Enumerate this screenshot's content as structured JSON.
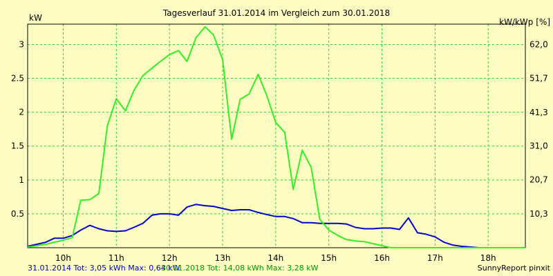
{
  "chart_data": {
    "type": "line",
    "title": "Tagesverlauf 31.01.2014 im Vergleich zum 30.01.2018",
    "ylabel_left": "kW",
    "ylabel_right": "kW/kWp [%]",
    "xlim": [
      9.33,
      18.7
    ],
    "ylim": [
      0,
      3.3
    ],
    "x_ticks": [
      10,
      11,
      12,
      13,
      14,
      15,
      16,
      17,
      18
    ],
    "x_tick_labels": [
      "10h",
      "11h",
      "12h",
      "13h",
      "14h",
      "15h",
      "16h",
      "17h",
      "18h"
    ],
    "y_ticks_left": [
      0.5,
      1,
      1.5,
      2,
      2.5,
      3
    ],
    "y_tick_labels_left": [
      "0.5",
      "1",
      "1.5",
      "2",
      "2.5",
      "3"
    ],
    "y_ticks_right": [
      10.3,
      20.7,
      31.0,
      41.3,
      51.7,
      62.0
    ],
    "y_tick_labels_right": [
      "10,3",
      "20,7",
      "31,0",
      "41,3",
      "51,7",
      "62,0"
    ],
    "grid": true,
    "series": [
      {
        "name": "31.01.2014",
        "color": "#0000cc",
        "x": [
          9.33,
          9.67,
          9.83,
          10.0,
          10.17,
          10.33,
          10.5,
          10.67,
          10.83,
          11.0,
          11.17,
          11.33,
          11.5,
          11.67,
          11.83,
          12.0,
          12.17,
          12.33,
          12.5,
          12.67,
          12.83,
          13.0,
          13.17,
          13.33,
          13.5,
          13.67,
          13.83,
          14.0,
          14.17,
          14.33,
          14.5,
          14.67,
          14.83,
          15.0,
          15.17,
          15.33,
          15.5,
          15.67,
          15.83,
          16.0,
          16.17,
          16.33,
          16.5,
          16.67,
          16.83,
          17.0,
          17.17,
          17.33,
          17.5,
          17.67,
          17.83,
          18.0
        ],
        "values": [
          0.02,
          0.08,
          0.14,
          0.14,
          0.18,
          0.26,
          0.33,
          0.28,
          0.25,
          0.24,
          0.25,
          0.3,
          0.36,
          0.48,
          0.5,
          0.5,
          0.48,
          0.6,
          0.64,
          0.62,
          0.61,
          0.58,
          0.55,
          0.56,
          0.56,
          0.52,
          0.49,
          0.46,
          0.46,
          0.43,
          0.37,
          0.37,
          0.36,
          0.36,
          0.36,
          0.35,
          0.3,
          0.28,
          0.28,
          0.29,
          0.29,
          0.27,
          0.44,
          0.22,
          0.2,
          0.16,
          0.08,
          0.04,
          0.02,
          0.01,
          0.0,
          0.0
        ]
      },
      {
        "name": "30.01.2018",
        "color": "#33ee22",
        "x": [
          9.33,
          9.5,
          9.67,
          9.83,
          10.0,
          10.17,
          10.33,
          10.5,
          10.67,
          10.83,
          11.0,
          11.17,
          11.33,
          11.5,
          11.67,
          11.83,
          12.0,
          12.17,
          12.33,
          12.5,
          12.67,
          12.83,
          13.0,
          13.17,
          13.33,
          13.5,
          13.67,
          13.83,
          14.0,
          14.17,
          14.33,
          14.5,
          14.67,
          14.83,
          15.0,
          15.17,
          15.33,
          15.5,
          15.67,
          15.83,
          16.0,
          16.17,
          16.33,
          16.5,
          16.67,
          16.83,
          17.0,
          17.17,
          17.33,
          17.5,
          17.67,
          17.83,
          18.0,
          18.17,
          18.33,
          18.5,
          18.7
        ],
        "values": [
          0.01,
          0.03,
          0.05,
          0.08,
          0.11,
          0.15,
          0.7,
          0.71,
          0.8,
          1.8,
          2.2,
          2.02,
          2.32,
          2.54,
          2.65,
          2.75,
          2.85,
          2.91,
          2.75,
          3.1,
          3.26,
          3.14,
          2.78,
          1.6,
          2.19,
          2.27,
          2.56,
          2.25,
          1.85,
          1.7,
          0.86,
          1.44,
          1.18,
          0.42,
          0.26,
          0.18,
          0.12,
          0.1,
          0.09,
          0.06,
          0.03,
          0.0,
          0.0,
          0.0,
          0.0,
          0.0,
          0.0,
          0.0,
          0.0,
          0.0,
          0.0,
          0.0,
          0.0,
          0.0,
          0.0,
          0.0,
          0.0
        ]
      }
    ]
  },
  "footer": {
    "series1": "31.01.2014 Tot: 3,05 kWh Max: 0,64 kW",
    "series2": "30.01.2018 Tot: 14,08 kWh Max: 3,28 kW",
    "source": "SunnyReport pinxit"
  }
}
